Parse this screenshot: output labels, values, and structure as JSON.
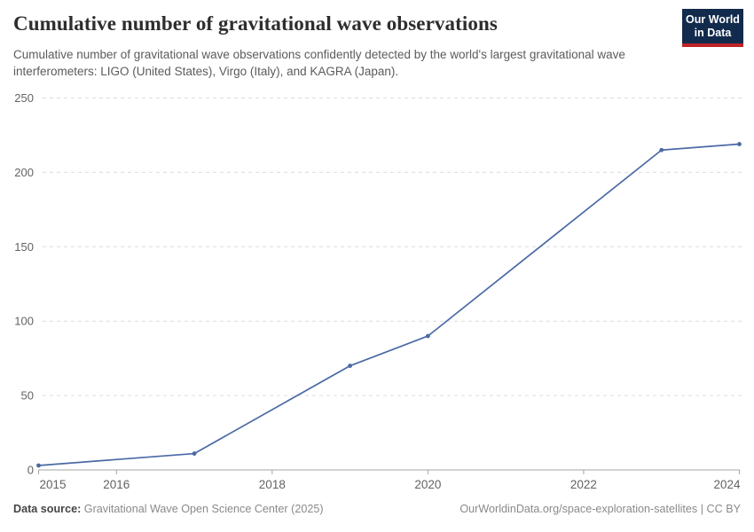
{
  "header": {
    "title": "Cumulative number of gravitational wave observations",
    "subtitle": "Cumulative number of gravitational wave observations confidently detected by the world's largest gravitational wave interferometers: LIGO (United States), Virgo (Italy), and KAGRA (Japan).",
    "logo": {
      "line1": "Our World",
      "line2": "in Data",
      "bg_color": "#122b4d",
      "accent_color": "#be2328"
    }
  },
  "chart_data": {
    "type": "line",
    "title": "Cumulative number of gravitational wave observations",
    "x": [
      2015,
      2017,
      2019,
      2020,
      2023,
      2024
    ],
    "values": [
      3,
      11,
      70,
      90,
      215,
      219
    ],
    "xlabel": "",
    "ylabel": "",
    "xlim": [
      2015,
      2024
    ],
    "ylim": [
      0,
      250
    ],
    "yticks": [
      0,
      50,
      100,
      150,
      200,
      250
    ],
    "xticks": [
      2015,
      2016,
      2018,
      2020,
      2022,
      2024
    ],
    "grid": "horizontal-dashed",
    "legend": "none",
    "line_color": "#4a69a5",
    "grid_color": "#dcdcdc",
    "axis_color": "#a5a5a5",
    "tick_label_color": "#636363"
  },
  "footer": {
    "datasource_label": "Data source:",
    "datasource_text": "Gravitational Wave Open Science Center (2025)",
    "link_text": "OurWorldinData.org/space-exploration-satellites | CC BY"
  }
}
